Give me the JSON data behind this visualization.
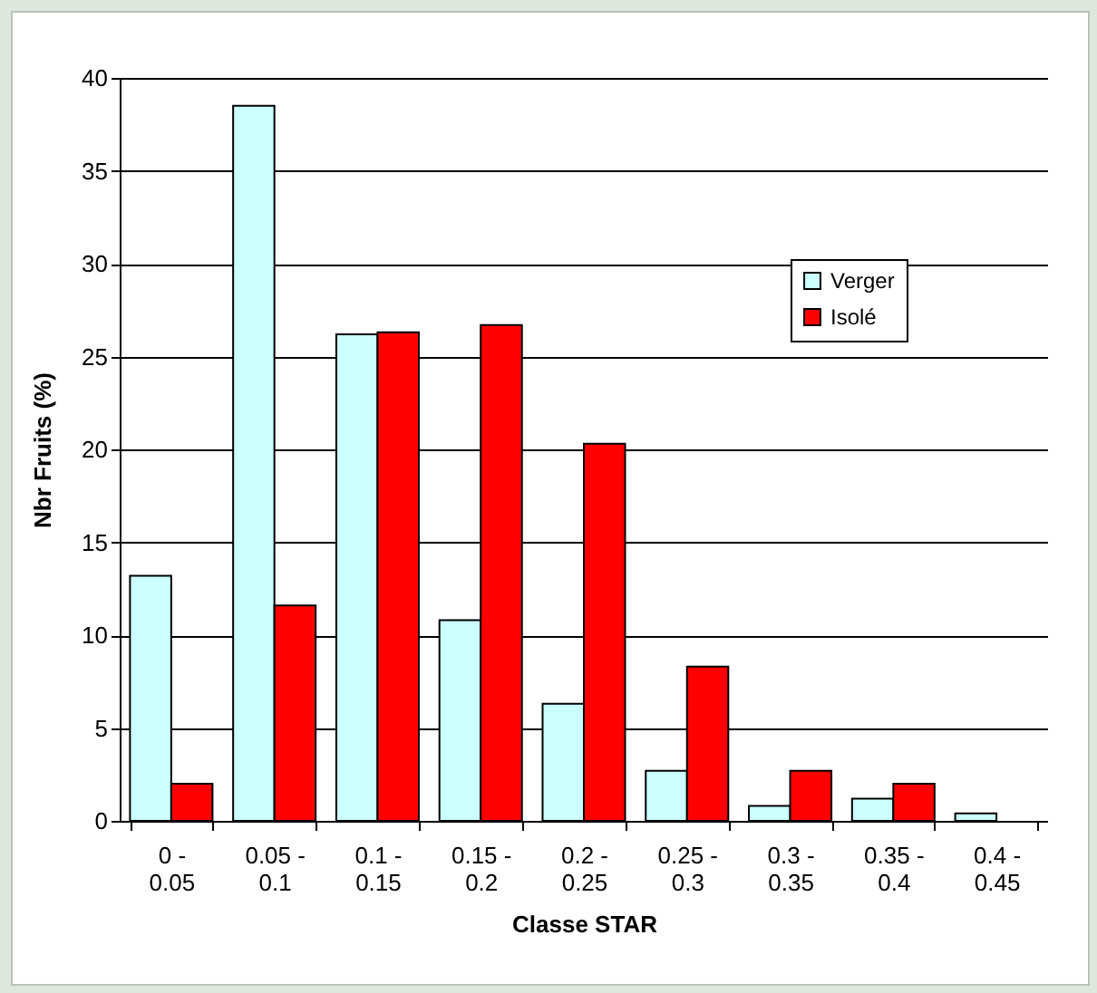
{
  "chart_data": {
    "type": "bar",
    "xlabel": "Classe STAR",
    "ylabel": "Nbr Fruits (%)",
    "categories": [
      "0 - 0.05",
      "0.05 - 0.1",
      "0.1 - 0.15",
      "0.15 - 0.2",
      "0.2 - 0.25",
      "0.25 - 0.3",
      "0.3 - 0.35",
      "0.35 - 0.4",
      "0.4 - 0.45"
    ],
    "series": [
      {
        "name": "Verger",
        "color": "#ccffff",
        "values": [
          13.2,
          38.5,
          26.2,
          10.8,
          6.3,
          2.7,
          0.8,
          1.2,
          0.4
        ]
      },
      {
        "name": "Isolé",
        "color": "#ff0000",
        "values": [
          2.0,
          11.6,
          26.3,
          26.7,
          20.3,
          8.3,
          2.7,
          2.0,
          null
        ]
      }
    ],
    "ylim": [
      0,
      40
    ],
    "yticks": [
      0,
      5,
      10,
      15,
      20,
      25,
      30,
      35,
      40
    ],
    "grid": "y",
    "legend": "top right"
  }
}
